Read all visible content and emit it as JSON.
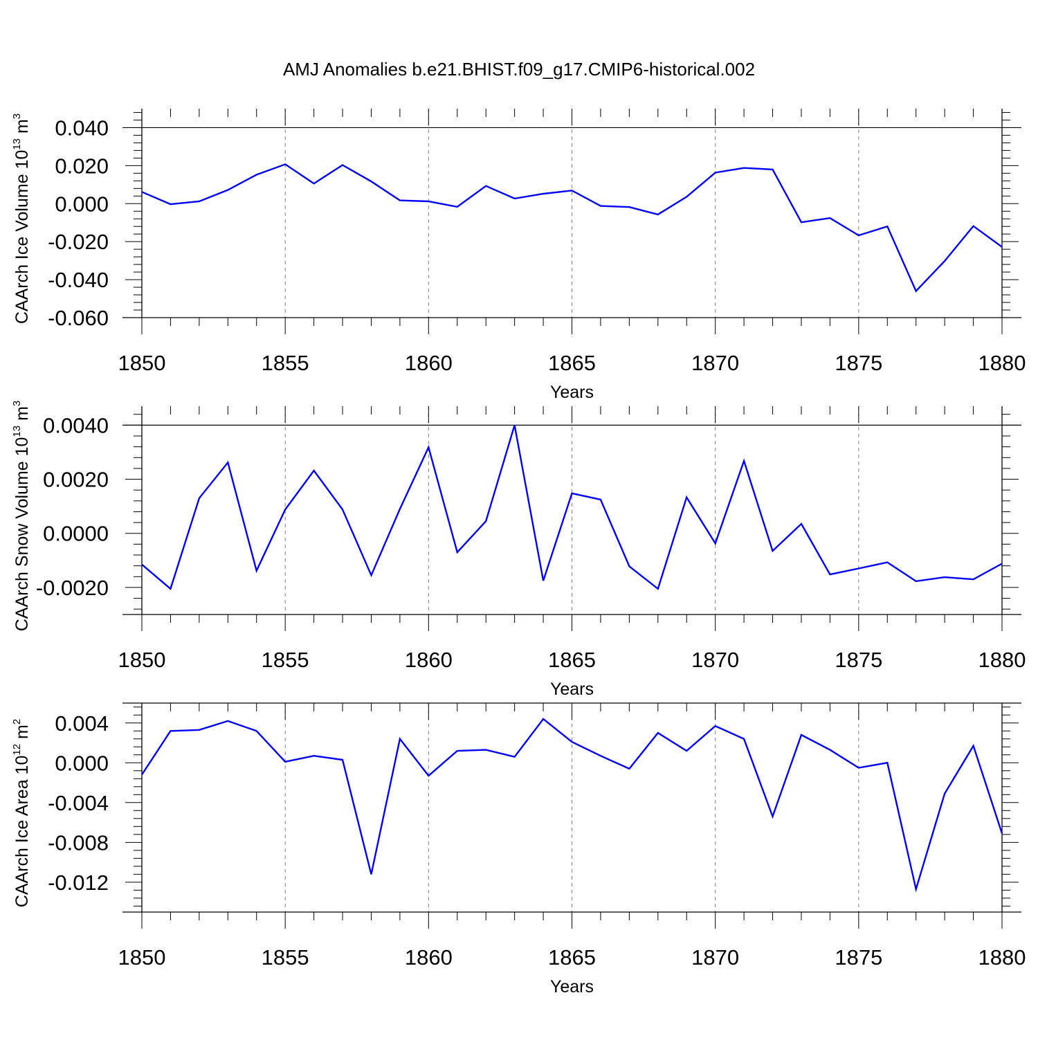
{
  "title": "AMJ Anomalies b.e21.BHIST.f09_g17.CMIP6-historical.002",
  "colors": {
    "line": "#0000ff",
    "axis": "#000000",
    "grid": "#808080",
    "background": "#ffffff"
  },
  "chart_data": [
    {
      "type": "line",
      "xlabel": "Years",
      "ylabel": {
        "text": "CAArch Ice Volume 10",
        "exp": "13",
        "unit": " m",
        "unit_exp": "3"
      },
      "xlim": [
        1850,
        1880
      ],
      "ylim": [
        -0.06,
        0.05
      ],
      "xticks": [
        1850,
        1855,
        1860,
        1865,
        1870,
        1875,
        1880
      ],
      "xtick_labels": [
        "1850",
        "1855",
        "1860",
        "1865",
        "1870",
        "1875",
        "1880"
      ],
      "yticks": [
        0.04,
        0.02,
        0.0,
        -0.02,
        -0.04,
        -0.06
      ],
      "ytick_labels": [
        "0.040",
        "0.020",
        "0.000",
        "-0.020",
        "-0.040",
        "-0.060"
      ],
      "hline": 0.04,
      "x": [
        1850,
        1851,
        1852,
        1853,
        1854,
        1855,
        1856,
        1857,
        1858,
        1859,
        1860,
        1861,
        1862,
        1863,
        1864,
        1865,
        1866,
        1867,
        1868,
        1869,
        1870,
        1871,
        1872,
        1873,
        1874,
        1875,
        1876,
        1877,
        1878,
        1879,
        1880
      ],
      "values": [
        0.0062,
        -0.0003,
        0.0012,
        0.0072,
        0.0152,
        0.0207,
        0.0106,
        0.0203,
        0.0117,
        0.0017,
        0.0012,
        -0.0017,
        0.0093,
        0.0027,
        0.0052,
        0.0069,
        -0.0012,
        -0.0018,
        -0.0057,
        0.0036,
        0.0163,
        0.0188,
        0.018,
        -0.0098,
        -0.0076,
        -0.0167,
        -0.012,
        -0.046,
        -0.0302,
        -0.0118,
        -0.0228
      ]
    },
    {
      "type": "line",
      "xlabel": "Years",
      "ylabel": {
        "text": "CAArch Snow Volume 10",
        "exp": "13",
        "unit": " m",
        "unit_exp": "3"
      },
      "xlim": [
        1850,
        1880
      ],
      "ylim": [
        -0.003,
        0.0047
      ],
      "xticks": [
        1850,
        1855,
        1860,
        1865,
        1870,
        1875,
        1880
      ],
      "xtick_labels": [
        "1850",
        "1855",
        "1860",
        "1865",
        "1870",
        "1875",
        "1880"
      ],
      "yticks": [
        0.004,
        0.002,
        0.0,
        -0.002
      ],
      "ytick_labels": [
        "0.0040",
        "0.0020",
        "0.0000",
        "-0.0020"
      ],
      "hline": 0.004,
      "x": [
        1850,
        1851,
        1852,
        1853,
        1854,
        1855,
        1856,
        1857,
        1858,
        1859,
        1860,
        1861,
        1862,
        1863,
        1864,
        1865,
        1866,
        1867,
        1868,
        1869,
        1870,
        1871,
        1872,
        1873,
        1874,
        1875,
        1876,
        1877,
        1878,
        1879,
        1880
      ],
      "values": [
        -0.00115,
        -0.00205,
        0.0013,
        0.00262,
        -0.00138,
        0.00088,
        0.00232,
        0.00088,
        -0.00155,
        0.0009,
        0.00318,
        -0.0007,
        0.00045,
        0.004,
        -0.00175,
        0.00148,
        0.00125,
        -0.00122,
        -0.00205,
        0.00133,
        -0.00037,
        0.00268,
        -0.00065,
        0.00035,
        -0.00152,
        -0.0013,
        -0.00107,
        -0.00177,
        -0.00162,
        -0.0017,
        -0.00112
      ]
    },
    {
      "type": "line",
      "xlabel": "Years",
      "ylabel": {
        "text": "CAArch Ice Area 10",
        "exp": "12",
        "unit": " m",
        "unit_exp": "2"
      },
      "xlim": [
        1850,
        1880
      ],
      "ylim": [
        -0.015,
        0.006
      ],
      "xticks": [
        1850,
        1855,
        1860,
        1865,
        1870,
        1875,
        1880
      ],
      "xtick_labels": [
        "1850",
        "1855",
        "1860",
        "1865",
        "1870",
        "1875",
        "1880"
      ],
      "yticks": [
        0.004,
        0.0,
        -0.004,
        -0.008,
        -0.012
      ],
      "ytick_labels": [
        "0.004",
        "0.000",
        "-0.004",
        "-0.008",
        "-0.012"
      ],
      "hline": 0.006,
      "x": [
        1850,
        1851,
        1852,
        1853,
        1854,
        1855,
        1856,
        1857,
        1858,
        1859,
        1860,
        1861,
        1862,
        1863,
        1864,
        1865,
        1866,
        1867,
        1868,
        1869,
        1870,
        1871,
        1872,
        1873,
        1874,
        1875,
        1876,
        1877,
        1878,
        1879,
        1880
      ],
      "values": [
        -0.0012,
        0.0032,
        0.0033,
        0.0042,
        0.0032,
        0.0001,
        0.0007,
        0.0003,
        -0.0112,
        0.0024,
        -0.0013,
        0.0012,
        0.0013,
        0.0006,
        0.0044,
        0.0021,
        0.0007,
        -0.0006,
        0.003,
        0.0012,
        0.0037,
        0.0024,
        -0.0054,
        0.0028,
        0.0013,
        -0.0005,
        0.0,
        -0.0127,
        -0.0031,
        0.0017,
        -0.0071
      ]
    }
  ]
}
